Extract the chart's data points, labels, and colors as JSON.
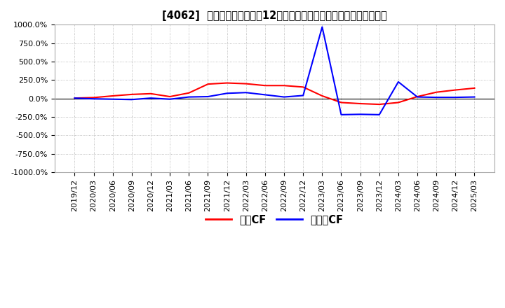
{
  "title": "[4062]  キャッシュフローの12か月移動合計の対前年同期増減率の推移",
  "legend_labels": [
    "営業CF",
    "フリーCF"
  ],
  "line_colors": [
    "#ff0000",
    "#0000ff"
  ],
  "ylim": [
    -1000,
    1000
  ],
  "yticks": [
    -1000,
    -750,
    -500,
    -250,
    0,
    250,
    500,
    750,
    1000
  ],
  "ytick_labels": [
    "-1000.0%",
    "-750.0%",
    "-500.0%",
    "-250.0%",
    "0.0%",
    "250.0%",
    "500.0%",
    "750.0%",
    "1000.0%"
  ],
  "background_color": "#ffffff",
  "x_dates": [
    "2019/12",
    "2020/03",
    "2020/06",
    "2020/09",
    "2020/12",
    "2021/03",
    "2021/06",
    "2021/09",
    "2021/12",
    "2022/03",
    "2022/06",
    "2022/09",
    "2022/12",
    "2023/03",
    "2023/06",
    "2023/09",
    "2023/12",
    "2024/03",
    "2024/06",
    "2024/09",
    "2024/12",
    "2025/03"
  ],
  "eigyo_cf": [
    5,
    12,
    35,
    55,
    65,
    25,
    75,
    195,
    210,
    200,
    175,
    175,
    155,
    35,
    -55,
    -70,
    -80,
    -55,
    25,
    85,
    115,
    140
  ],
  "free_cf": [
    5,
    -5,
    -10,
    -15,
    5,
    -10,
    20,
    25,
    70,
    80,
    50,
    20,
    40,
    970,
    -220,
    -215,
    -220,
    225,
    20,
    15,
    15,
    20
  ],
  "grid_color": "#aaaaaa",
  "grid_linestyle": "dotted",
  "spine_color": "#aaaaaa",
  "title_fontsize": 10.5,
  "tick_fontsize": 8,
  "legend_fontsize": 9,
  "line_width": 1.5
}
